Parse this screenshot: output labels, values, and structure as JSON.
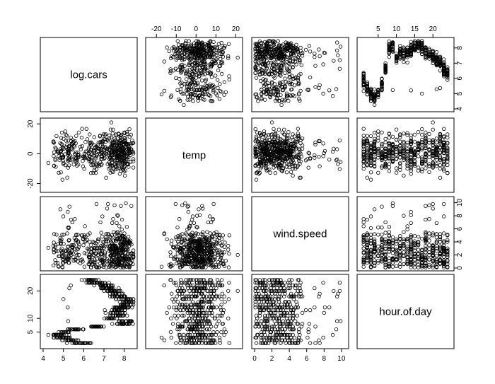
{
  "chart_data": {
    "type": "scatter",
    "variables": [
      {
        "name": "log.cars",
        "range": [
          4,
          8.5
        ],
        "ticks": [
          4,
          5,
          6,
          7,
          8
        ]
      },
      {
        "name": "temp",
        "range": [
          -24,
          22
        ],
        "ticks": [
          -20,
          -10,
          0,
          10,
          20
        ],
        "ticks_left": [
          -20,
          0,
          20
        ],
        "ticks_right": [
          -20,
          -10,
          0,
          10,
          20
        ]
      },
      {
        "name": "wind.speed",
        "range": [
          0,
          10.5
        ],
        "ticks": [
          0,
          2,
          4,
          6,
          8,
          10
        ]
      },
      {
        "name": "hour.of.day",
        "range": [
          0,
          25
        ],
        "ticks": [
          5,
          10,
          15,
          20
        ]
      }
    ],
    "axis_ticks": {
      "top": {
        "temp": [
          "-20",
          "-10",
          "0",
          "10",
          "20"
        ],
        "hour.of.day": [
          "5",
          "10",
          "15",
          "20"
        ]
      },
      "right": {
        "log.cars": [
          "4",
          "5",
          "6",
          "7",
          "8"
        ],
        "wind.speed": [
          "0",
          "2",
          "4",
          "6",
          "8",
          "10"
        ]
      },
      "left": {
        "temp": [
          "-20",
          "0",
          "20"
        ],
        "hour.of.day": [
          "5",
          "10",
          "20"
        ]
      },
      "bottom": {
        "log.cars": [
          "4",
          "5",
          "6",
          "7",
          "8"
        ],
        "wind.speed": [
          "0",
          "2",
          "4",
          "6",
          "8",
          "10"
        ]
      }
    },
    "hourly_mean_log_cars": [
      {
        "hour": 1,
        "mean": 5.9
      },
      {
        "hour": 2,
        "mean": 5.4
      },
      {
        "hour": 3,
        "mean": 4.9
      },
      {
        "hour": 4,
        "mean": 4.7
      },
      {
        "hour": 5,
        "mean": 5.0
      },
      {
        "hour": 6,
        "mean": 5.6
      },
      {
        "hour": 7,
        "mean": 6.6
      },
      {
        "hour": 8,
        "mean": 7.9
      },
      {
        "hour": 9,
        "mean": 8.1
      },
      {
        "hour": 10,
        "mean": 7.4
      },
      {
        "hour": 11,
        "mean": 7.6
      },
      {
        "hour": 12,
        "mean": 7.7
      },
      {
        "hour": 13,
        "mean": 7.7
      },
      {
        "hour": 14,
        "mean": 7.8
      },
      {
        "hour": 15,
        "mean": 8.0
      },
      {
        "hour": 16,
        "mean": 8.2
      },
      {
        "hour": 17,
        "mean": 8.1
      },
      {
        "hour": 18,
        "mean": 7.8
      },
      {
        "hour": 19,
        "mean": 7.6
      },
      {
        "hour": 20,
        "mean": 7.4
      },
      {
        "hour": 21,
        "mean": 7.2
      },
      {
        "hour": 22,
        "mean": 7.0
      },
      {
        "hour": 23,
        "mean": 6.7
      },
      {
        "hour": 24,
        "mean": 6.4
      }
    ],
    "n_points": 500,
    "marker": "open-circle",
    "grid": false
  }
}
